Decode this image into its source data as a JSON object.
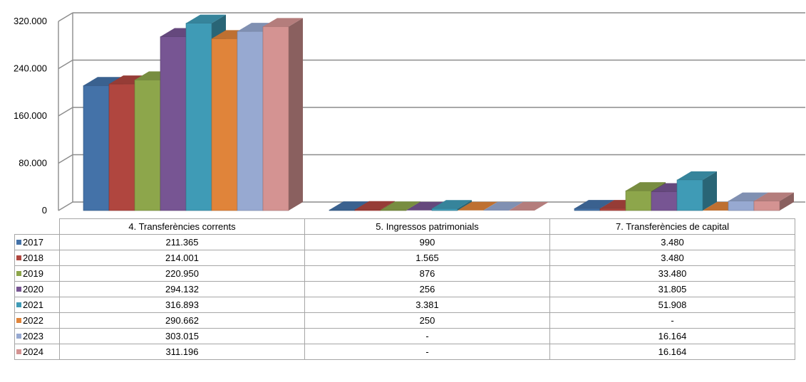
{
  "chart_data": {
    "type": "bar",
    "categories": [
      "4. Transferències corrents",
      "5. Ingressos patrimonials",
      "7. Transferències de capital"
    ],
    "y_ticks": [
      "0",
      "80.000",
      "160.000",
      "240.000",
      "320.000"
    ],
    "ylim": [
      0,
      320000
    ],
    "grid": true,
    "legend_placement": "data-table",
    "series": [
      {
        "name": "2017",
        "color": "#4472a8",
        "values": [
          211365,
          990,
          3480
        ],
        "labels": [
          "211.365",
          "990",
          "3.480"
        ]
      },
      {
        "name": "2018",
        "color": "#b0463f",
        "values": [
          214001,
          1565,
          3480
        ],
        "labels": [
          "214.001",
          "1.565",
          "3.480"
        ]
      },
      {
        "name": "2019",
        "color": "#8da64b",
        "values": [
          220950,
          876,
          33480
        ],
        "labels": [
          "220.950",
          "876",
          "33.480"
        ]
      },
      {
        "name": "2020",
        "color": "#775593",
        "values": [
          294132,
          256,
          31805
        ],
        "labels": [
          "294.132",
          "256",
          "31.805"
        ]
      },
      {
        "name": "2021",
        "color": "#3f9bb6",
        "values": [
          316893,
          3381,
          51908
        ],
        "labels": [
          "316.893",
          "3.381",
          "51.908"
        ]
      },
      {
        "name": "2022",
        "color": "#e0843a",
        "values": [
          290662,
          250,
          0
        ],
        "labels": [
          "290.662",
          "250",
          "-"
        ]
      },
      {
        "name": "2023",
        "color": "#97a9d1",
        "values": [
          303015,
          0,
          16164
        ],
        "labels": [
          "303.015",
          "-",
          "16.164"
        ]
      },
      {
        "name": "2024",
        "color": "#d49392",
        "values": [
          311196,
          0,
          16164
        ],
        "labels": [
          "311.196",
          "-",
          "16.164"
        ]
      }
    ]
  }
}
